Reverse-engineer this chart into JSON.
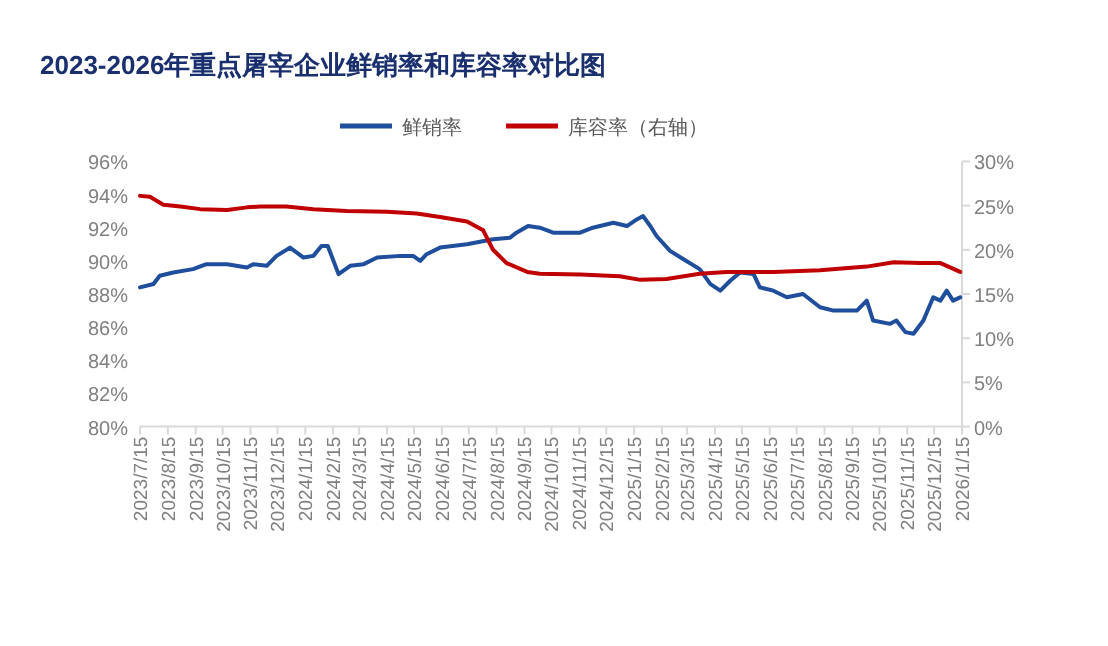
{
  "chart_data": {
    "type": "line",
    "title": "2023-2026年重点屠宰企业鲜销率和库容率对比图",
    "legend": "top",
    "grid": false,
    "line_style": "solid",
    "marker": "none",
    "xlim": [
      "2023-07-15",
      "2026-01-15"
    ],
    "xticks": [
      {
        "value": "2023-07-15",
        "label": "2023/7/15"
      },
      {
        "value": "2023-08-15",
        "label": "2023/8/15"
      },
      {
        "value": "2023-09-15",
        "label": "2023/9/15"
      },
      {
        "value": "2023-10-15",
        "label": "2023/10/15"
      },
      {
        "value": "2023-11-15",
        "label": "2023/11/15"
      },
      {
        "value": "2023-12-15",
        "label": "2023/12/15"
      },
      {
        "value": "2024-01-15",
        "label": "2024/1/15"
      },
      {
        "value": "2024-02-15",
        "label": "2024/2/15"
      },
      {
        "value": "2024-03-15",
        "label": "2024/3/15"
      },
      {
        "value": "2024-04-15",
        "label": "2024/4/15"
      },
      {
        "value": "2024-05-15",
        "label": "2024/5/15"
      },
      {
        "value": "2024-06-15",
        "label": "2024/6/15"
      },
      {
        "value": "2024-07-15",
        "label": "2024/7/15"
      },
      {
        "value": "2024-08-15",
        "label": "2024/8/15"
      },
      {
        "value": "2024-09-15",
        "label": "2024/9/15"
      },
      {
        "value": "2024-10-15",
        "label": "2024/10/15"
      },
      {
        "value": "2024-11-15",
        "label": "2024/11/15"
      },
      {
        "value": "2024-12-15",
        "label": "2024/12/15"
      },
      {
        "value": "2025-01-15",
        "label": "2025/1/15"
      },
      {
        "value": "2025-02-15",
        "label": "2025/2/15"
      },
      {
        "value": "2025-03-15",
        "label": "2025/3/15"
      },
      {
        "value": "2025-04-15",
        "label": "2025/4/15"
      },
      {
        "value": "2025-05-15",
        "label": "2025/5/15"
      },
      {
        "value": "2025-06-15",
        "label": "2025/6/15"
      },
      {
        "value": "2025-07-15",
        "label": "2025/7/15"
      },
      {
        "value": "2025-08-15",
        "label": "2025/8/15"
      },
      {
        "value": "2025-09-15",
        "label": "2025/9/15"
      },
      {
        "value": "2025-10-15",
        "label": "2025/10/15"
      },
      {
        "value": "2025-11-15",
        "label": "2025/11/15"
      },
      {
        "value": "2025-12-15",
        "label": "2025/12/15"
      },
      {
        "value": "2026-01-15",
        "label": "2026/1/15"
      }
    ],
    "ylim": [
      80,
      96
    ],
    "yticks": [
      {
        "value": 80,
        "label": "80%"
      },
      {
        "value": 82,
        "label": "82%"
      },
      {
        "value": 84,
        "label": "84%"
      },
      {
        "value": 86,
        "label": "86%"
      },
      {
        "value": 88,
        "label": "88%"
      },
      {
        "value": 90,
        "label": "90%"
      },
      {
        "value": 92,
        "label": "92%"
      },
      {
        "value": 94,
        "label": "94%"
      },
      {
        "value": 96,
        "label": "96%"
      }
    ],
    "y2lim": [
      0,
      30
    ],
    "y2ticks": [
      {
        "value": 0,
        "label": "0%"
      },
      {
        "value": 5,
        "label": "5%"
      },
      {
        "value": 10,
        "label": "10%"
      },
      {
        "value": 15,
        "label": "15%"
      },
      {
        "value": 20,
        "label": "20%"
      },
      {
        "value": 25,
        "label": "25%"
      },
      {
        "value": 30,
        "label": "30%"
      }
    ],
    "series": [
      {
        "name": "鲜销率",
        "color": "#1f4e9c",
        "x": [
          "2023-07-15",
          "2023-07-30",
          "2023-08-06",
          "2023-08-21",
          "2023-09-12",
          "2023-09-27",
          "2023-10-20",
          "2023-11-11",
          "2023-11-18",
          "2023-12-03",
          "2023-12-14",
          "2023-12-29",
          "2024-01-13",
          "2024-01-24",
          "2024-02-02",
          "2024-02-09",
          "2024-02-21",
          "2024-03-05",
          "2024-03-20",
          "2024-04-04",
          "2024-04-30",
          "2024-05-14",
          "2024-05-22",
          "2024-05-29",
          "2024-06-13",
          "2024-07-13",
          "2024-08-11",
          "2024-08-30",
          "2024-09-06",
          "2024-09-19",
          "2024-10-02",
          "2024-10-17",
          "2024-11-16",
          "2024-11-30",
          "2024-12-23",
          "2025-01-07",
          "2025-01-18",
          "2025-01-25",
          "2025-02-02",
          "2025-02-09",
          "2025-02-24",
          "2025-03-11",
          "2025-03-29",
          "2025-04-10",
          "2025-04-21",
          "2025-05-02",
          "2025-05-13",
          "2025-05-28",
          "2025-06-04",
          "2025-06-19",
          "2025-07-04",
          "2025-07-22",
          "2025-08-10",
          "2025-08-25",
          "2025-09-20",
          "2025-10-01",
          "2025-10-08",
          "2025-10-27",
          "2025-11-03",
          "2025-11-13",
          "2025-11-22",
          "2025-12-03",
          "2025-12-14",
          "2025-12-22",
          "2025-12-29",
          "2026-01-05",
          "2026-01-13"
        ],
        "values": [
          88.4,
          88.6,
          89.1,
          89.3,
          89.5,
          89.8,
          89.8,
          89.6,
          89.8,
          89.7,
          90.3,
          90.8,
          90.2,
          90.3,
          90.9,
          90.9,
          89.2,
          89.7,
          89.8,
          90.2,
          90.3,
          90.3,
          90.0,
          90.4,
          90.8,
          91.0,
          91.3,
          91.4,
          91.7,
          92.1,
          92.0,
          91.7,
          91.7,
          92.0,
          92.3,
          92.1,
          92.5,
          92.7,
          92.1,
          91.5,
          90.6,
          90.1,
          89.5,
          88.6,
          88.2,
          88.8,
          89.3,
          89.2,
          88.4,
          88.2,
          87.8,
          88.0,
          87.2,
          87.0,
          87.0,
          87.6,
          86.4,
          86.2,
          86.4,
          85.7,
          85.6,
          86.4,
          87.8,
          87.6,
          88.2,
          87.6,
          87.8
        ]
      },
      {
        "name": "库容率（右轴）",
        "color": "#c00000",
        "axis": "y2",
        "x": [
          "2023-07-15",
          "2023-07-26",
          "2023-08-10",
          "2023-08-29",
          "2023-09-20",
          "2023-10-20",
          "2023-11-11",
          "2023-11-26",
          "2023-12-25",
          "2024-01-24",
          "2024-03-01",
          "2024-04-15",
          "2024-05-18",
          "2024-06-13",
          "2024-07-13",
          "2024-07-31",
          "2024-08-11",
          "2024-08-26",
          "2024-09-18",
          "2024-10-02",
          "2024-11-16",
          "2024-12-30",
          "2025-01-22",
          "2025-02-20",
          "2025-03-29",
          "2025-04-28",
          "2025-06-19",
          "2025-08-10",
          "2025-10-01",
          "2025-10-31",
          "2025-11-30",
          "2025-12-22",
          "2026-01-13"
        ],
        "values": [
          26.1,
          26.0,
          25.1,
          24.9,
          24.6,
          24.5,
          24.8,
          24.9,
          24.9,
          24.6,
          24.4,
          24.3,
          24.1,
          23.7,
          23.2,
          22.2,
          20.0,
          18.5,
          17.5,
          17.3,
          17.2,
          17.0,
          16.6,
          16.7,
          17.3,
          17.5,
          17.5,
          17.7,
          18.1,
          18.6,
          18.5,
          18.5,
          17.5
        ]
      }
    ]
  }
}
